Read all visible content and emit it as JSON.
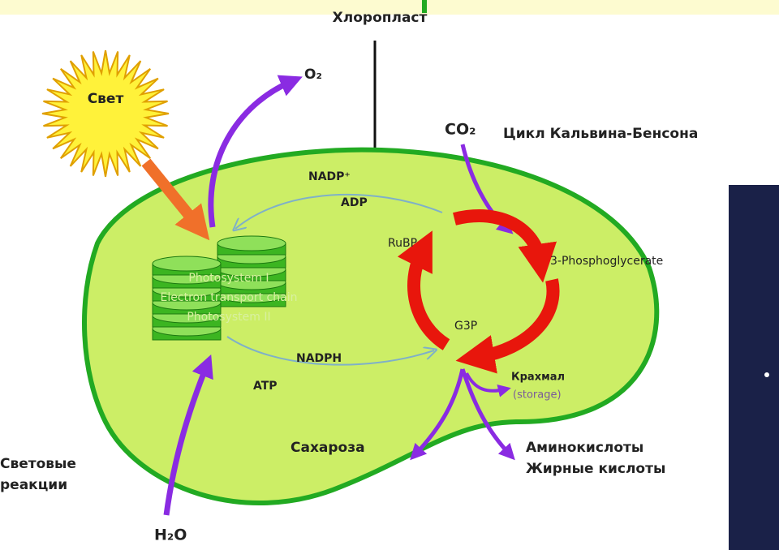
{
  "title": "Хлоропласт",
  "light": "Свет",
  "oxygen": "O₂",
  "carbon_dioxide": "CO₂",
  "cycle_name": "Цикл Кальвина-Бенсона",
  "nadp": "NADP⁺",
  "adp": "ADP",
  "rubp": "RuBP",
  "pga": "3-Phosphoglycerate",
  "thylakoid": [
    "Photosystem I",
    "Electron transport chain",
    "Photosystem II"
  ],
  "g3p": "G3P",
  "nadph": "NADPH",
  "atp": "ATP",
  "starch": "Крахмал",
  "storage": "(storage)",
  "sucrose": "Сахароза",
  "products": [
    "Аминокислоты",
    "Жирные кислоты"
  ],
  "light_reactions": [
    "Световые",
    "реакции"
  ],
  "water": "H₂O"
}
